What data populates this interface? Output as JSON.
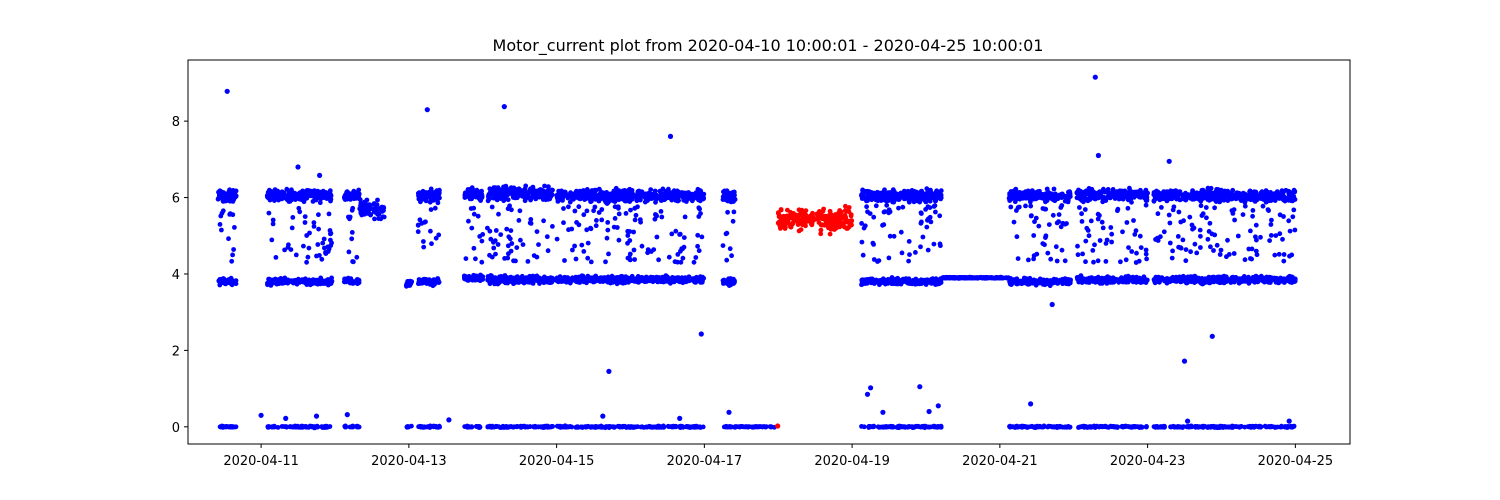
{
  "chart_data": {
    "type": "scatter",
    "title": "Motor_current plot from 2020-04-10 10:00:01 - 2020-04-25 10:00:01",
    "xlabel": "",
    "ylabel": "",
    "x_axis_type": "date",
    "xlim": [
      "2020-04-10T00:15:00",
      "2020-04-25T17:45:00"
    ],
    "ylim": [
      -0.45,
      9.6
    ],
    "x_ticks": [
      "2020-04-11",
      "2020-04-13",
      "2020-04-15",
      "2020-04-17",
      "2020-04-19",
      "2020-04-21",
      "2020-04-23",
      "2020-04-25"
    ],
    "y_ticks": [
      0,
      2,
      4,
      6,
      8
    ],
    "grid": false,
    "legend": "none",
    "marker": "circle",
    "colors": {
      "normal": "#0000ff",
      "highlight": "#ff0000"
    },
    "series": [
      {
        "color": "#0000ff",
        "segments": [
          {
            "start": "2020-04-10T10:00:01",
            "end": "2020-04-10T16:00:00",
            "levels": [
              0,
              3.8,
              6.05
            ],
            "spread": [
              0.03,
              0.12,
              0.22
            ],
            "scatter": [
              4.3,
              5.8
            ]
          },
          {
            "start": "2020-04-11T02:00:00",
            "end": "2020-04-11T23:00:00",
            "levels": [
              0,
              3.8,
              6.05
            ],
            "spread": [
              0.03,
              0.12,
              0.22
            ],
            "scatter": [
              4.3,
              5.8
            ]
          },
          {
            "start": "2020-04-12T03:00:00",
            "end": "2020-04-12T08:00:00",
            "levels": [
              0,
              3.8,
              6.05
            ],
            "spread": [
              0.03,
              0.12,
              0.22
            ],
            "scatter": [
              4.3,
              5.8
            ]
          },
          {
            "start": "2020-04-12T08:00:00",
            "end": "2020-04-12T16:00:00",
            "levels": [
              5.7
            ],
            "spread": [
              0.35
            ],
            "scatter": []
          },
          {
            "start": "2020-04-12T23:00:00",
            "end": "2020-04-13T01:00:00",
            "levels": [
              0,
              3.75
            ],
            "spread": [
              0.03,
              0.12
            ],
            "scatter": []
          },
          {
            "start": "2020-04-13T03:00:00",
            "end": "2020-04-13T10:00:00",
            "levels": [
              0,
              3.8,
              6.05
            ],
            "spread": [
              0.03,
              0.12,
              0.22
            ],
            "scatter": [
              4.3,
              5.8
            ]
          },
          {
            "start": "2020-04-13T18:00:00",
            "end": "2020-04-14T00:00:00",
            "levels": [
              0,
              3.9,
              6.1
            ],
            "spread": [
              0.03,
              0.12,
              0.25
            ],
            "scatter": [
              4.3,
              5.8
            ]
          },
          {
            "start": "2020-04-14T01:30:00",
            "end": "2020-04-14T23:00:00",
            "levels": [
              0,
              3.85,
              6.1
            ],
            "spread": [
              0.03,
              0.15,
              0.25
            ],
            "scatter": [
              4.3,
              5.8
            ]
          },
          {
            "start": "2020-04-15T00:00:00",
            "end": "2020-04-16T23:50:00",
            "levels": [
              0,
              3.85,
              6.05
            ],
            "spread": [
              0.03,
              0.12,
              0.22
            ],
            "scatter": [
              4.3,
              5.8
            ]
          },
          {
            "start": "2020-04-17T06:00:00",
            "end": "2020-04-17T10:00:00",
            "levels": [
              0,
              3.8,
              6.05
            ],
            "spread": [
              0.03,
              0.12,
              0.22
            ],
            "scatter": [
              4.3,
              5.8
            ]
          },
          {
            "start": "2020-04-17T10:00:00",
            "end": "2020-04-17T23:00:00",
            "levels": [
              0
            ],
            "spread": [
              0.02
            ],
            "scatter": []
          },
          {
            "start": "2020-04-19T03:00:00",
            "end": "2020-04-20T05:00:00",
            "levels": [
              0,
              3.8,
              6.05
            ],
            "spread": [
              0.03,
              0.12,
              0.22
            ],
            "scatter": [
              4.3,
              5.8
            ]
          },
          {
            "start": "2020-04-20T05:00:00",
            "end": "2020-04-21T03:00:00",
            "levels": [
              3.9
            ],
            "spread": [
              0.02
            ],
            "scatter": []
          },
          {
            "start": "2020-04-21T03:00:00",
            "end": "2020-04-21T23:00:00",
            "levels": [
              0,
              3.8,
              6.05
            ],
            "spread": [
              0.03,
              0.12,
              0.22
            ],
            "scatter": [
              4.3,
              5.8
            ]
          },
          {
            "start": "2020-04-22T01:00:00",
            "end": "2020-04-23T00:00:00",
            "levels": [
              0,
              3.85,
              6.05
            ],
            "spread": [
              0.03,
              0.12,
              0.22
            ],
            "scatter": [
              4.3,
              5.8
            ]
          },
          {
            "start": "2020-04-23T02:00:00",
            "end": "2020-04-25T00:00:00",
            "levels": [
              0,
              3.85,
              6.05
            ],
            "spread": [
              0.03,
              0.12,
              0.22
            ],
            "scatter": [
              4.3,
              5.8
            ]
          }
        ],
        "outliers": [
          {
            "x": "2020-04-10T13:00:00",
            "y": 8.78
          },
          {
            "x": "2020-04-11T12:00:00",
            "y": 6.8
          },
          {
            "x": "2020-04-11T19:00:00",
            "y": 6.58
          },
          {
            "x": "2020-04-13T06:00:00",
            "y": 8.3
          },
          {
            "x": "2020-04-14T07:00:00",
            "y": 8.38
          },
          {
            "x": "2020-04-16T13:00:00",
            "y": 7.6
          },
          {
            "x": "2020-04-16T23:00:00",
            "y": 2.43
          },
          {
            "x": "2020-04-22T07:00:00",
            "y": 9.15
          },
          {
            "x": "2020-04-22T08:00:00",
            "y": 7.1
          },
          {
            "x": "2020-04-23T07:00:00",
            "y": 6.95
          },
          {
            "x": "2020-04-23T12:00:00",
            "y": 1.72
          },
          {
            "x": "2020-04-23T21:00:00",
            "y": 2.37
          },
          {
            "x": "2020-04-21T17:00:00",
            "y": 3.2
          },
          {
            "x": "2020-04-15T17:00:00",
            "y": 1.45
          },
          {
            "x": "2020-04-11T00:00:00",
            "y": 0.3
          },
          {
            "x": "2020-04-11T08:00:00",
            "y": 0.22
          },
          {
            "x": "2020-04-11T18:00:00",
            "y": 0.28
          },
          {
            "x": "2020-04-12T04:00:00",
            "y": 0.32
          },
          {
            "x": "2020-04-13T13:00:00",
            "y": 0.18
          },
          {
            "x": "2020-04-15T15:00:00",
            "y": 0.28
          },
          {
            "x": "2020-04-16T16:00:00",
            "y": 0.22
          },
          {
            "x": "2020-04-17T08:00:00",
            "y": 0.38
          },
          {
            "x": "2020-04-19T05:00:00",
            "y": 0.85
          },
          {
            "x": "2020-04-19T06:00:00",
            "y": 1.02
          },
          {
            "x": "2020-04-19T10:00:00",
            "y": 0.38
          },
          {
            "x": "2020-04-19T22:00:00",
            "y": 1.05
          },
          {
            "x": "2020-04-20T01:00:00",
            "y": 0.4
          },
          {
            "x": "2020-04-20T04:00:00",
            "y": 0.55
          },
          {
            "x": "2020-04-21T10:00:00",
            "y": 0.6
          },
          {
            "x": "2020-04-23T13:00:00",
            "y": 0.15
          },
          {
            "x": "2020-04-24T22:00:00",
            "y": 0.15
          }
        ]
      },
      {
        "color": "#ff0000",
        "segments": [
          {
            "start": "2020-04-18T00:00:00",
            "end": "2020-04-19T00:00:00",
            "levels": [
              5.42
            ],
            "spread": [
              0.4
            ],
            "scatter": []
          }
        ],
        "outliers": [
          {
            "x": "2020-04-17T23:50:00",
            "y": 0.02
          }
        ]
      }
    ]
  }
}
